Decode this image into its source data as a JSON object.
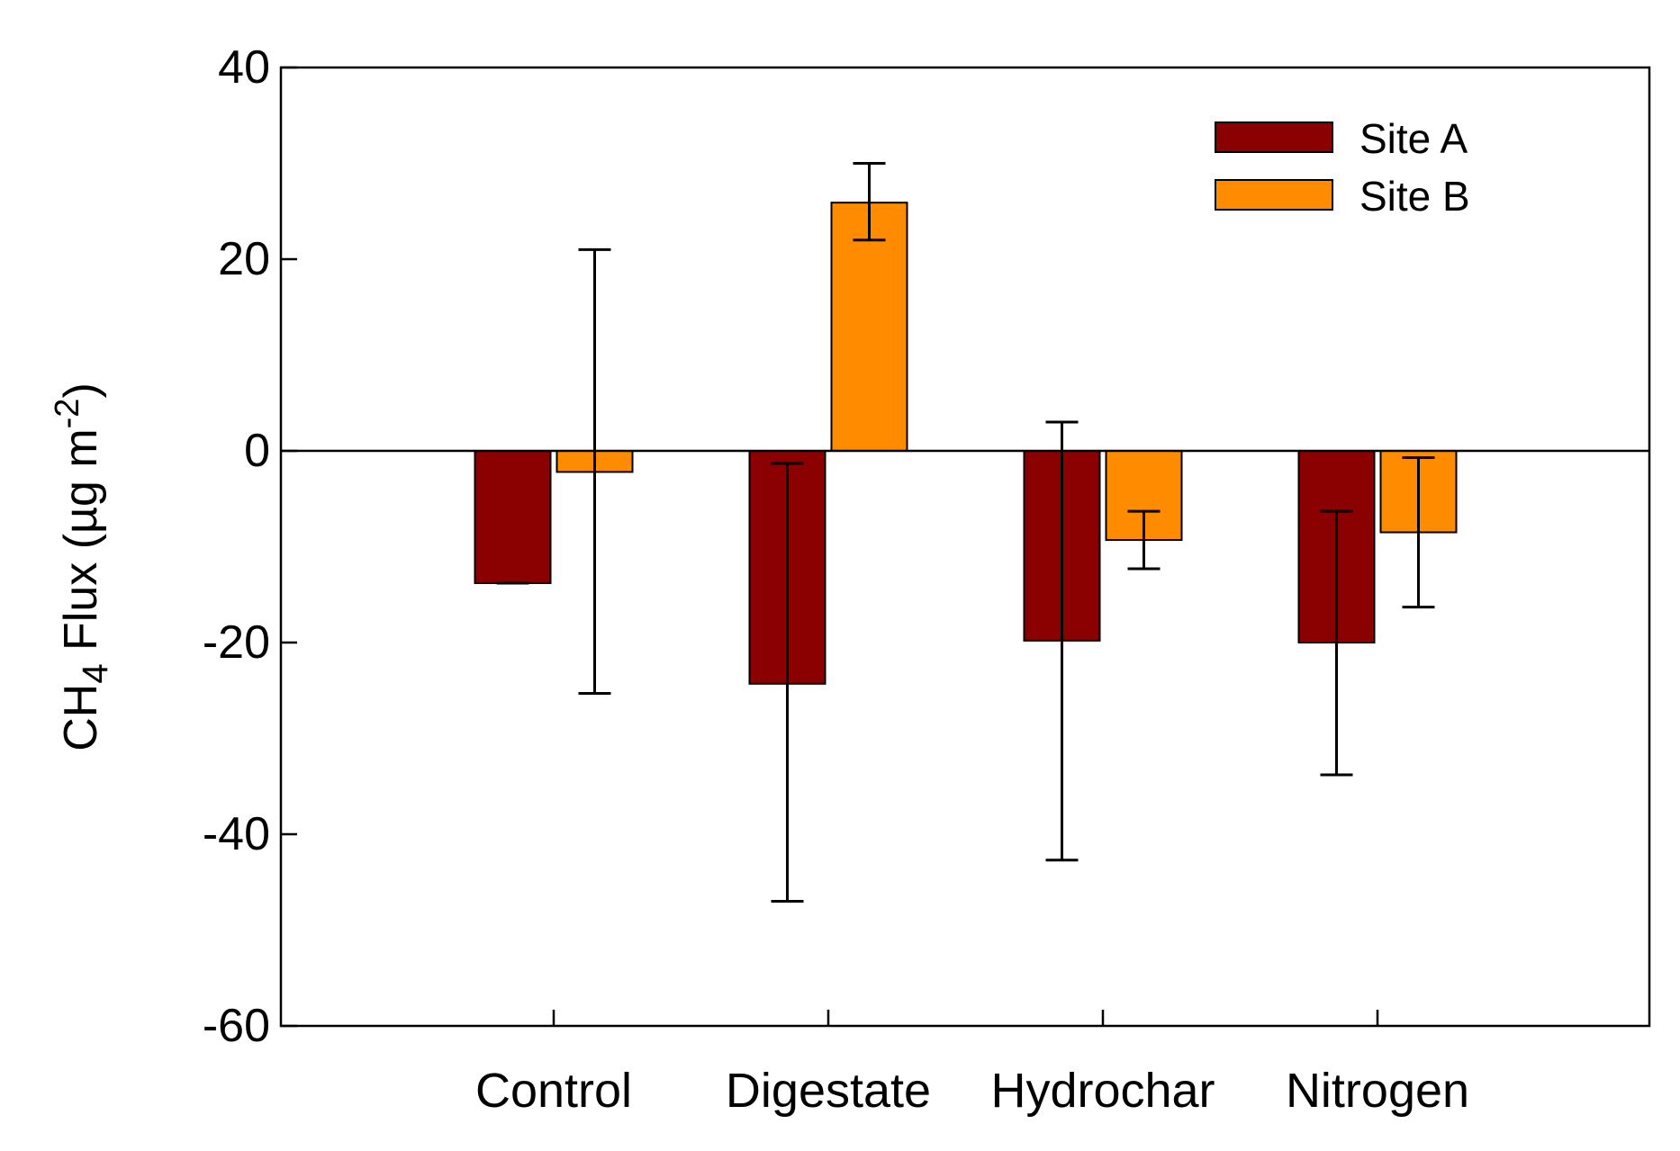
{
  "chart_data": {
    "type": "bar",
    "title": "",
    "xlabel": "",
    "ylabel": {
      "prefix": "CH",
      "subscript": "4",
      "middle": " Flux (µg m",
      "superscript": "-2",
      "suffix": ")"
    },
    "ylim": [
      -60,
      40
    ],
    "yticks": [
      -60,
      -40,
      -20,
      0,
      20,
      40
    ],
    "ytick_labels": [
      "-60",
      "-40",
      "-20",
      "0",
      "20",
      "40"
    ],
    "categories": [
      "Control",
      "Digestate",
      "Hydrochar",
      "Nitrogen"
    ],
    "series": [
      {
        "name": "Site A",
        "color": "#8b0000",
        "values": [
          -13.8,
          -24.3,
          -19.8,
          -20.0
        ],
        "error_low": [
          -13.8,
          -47.0,
          -42.7,
          -33.8
        ],
        "error_high": [
          -13.8,
          -1.3,
          3.0,
          -6.3
        ]
      },
      {
        "name": "Site B",
        "color": "#ff8c00",
        "values": [
          -2.2,
          25.9,
          -9.3,
          -8.5
        ],
        "error_low": [
          -25.3,
          22.0,
          -12.3,
          -16.3
        ],
        "error_high": [
          21.0,
          30.0,
          -6.3,
          -0.7
        ]
      }
    ],
    "legend": {
      "position": "top-right",
      "entries": [
        "Site A",
        "Site B"
      ]
    },
    "grid": false
  }
}
